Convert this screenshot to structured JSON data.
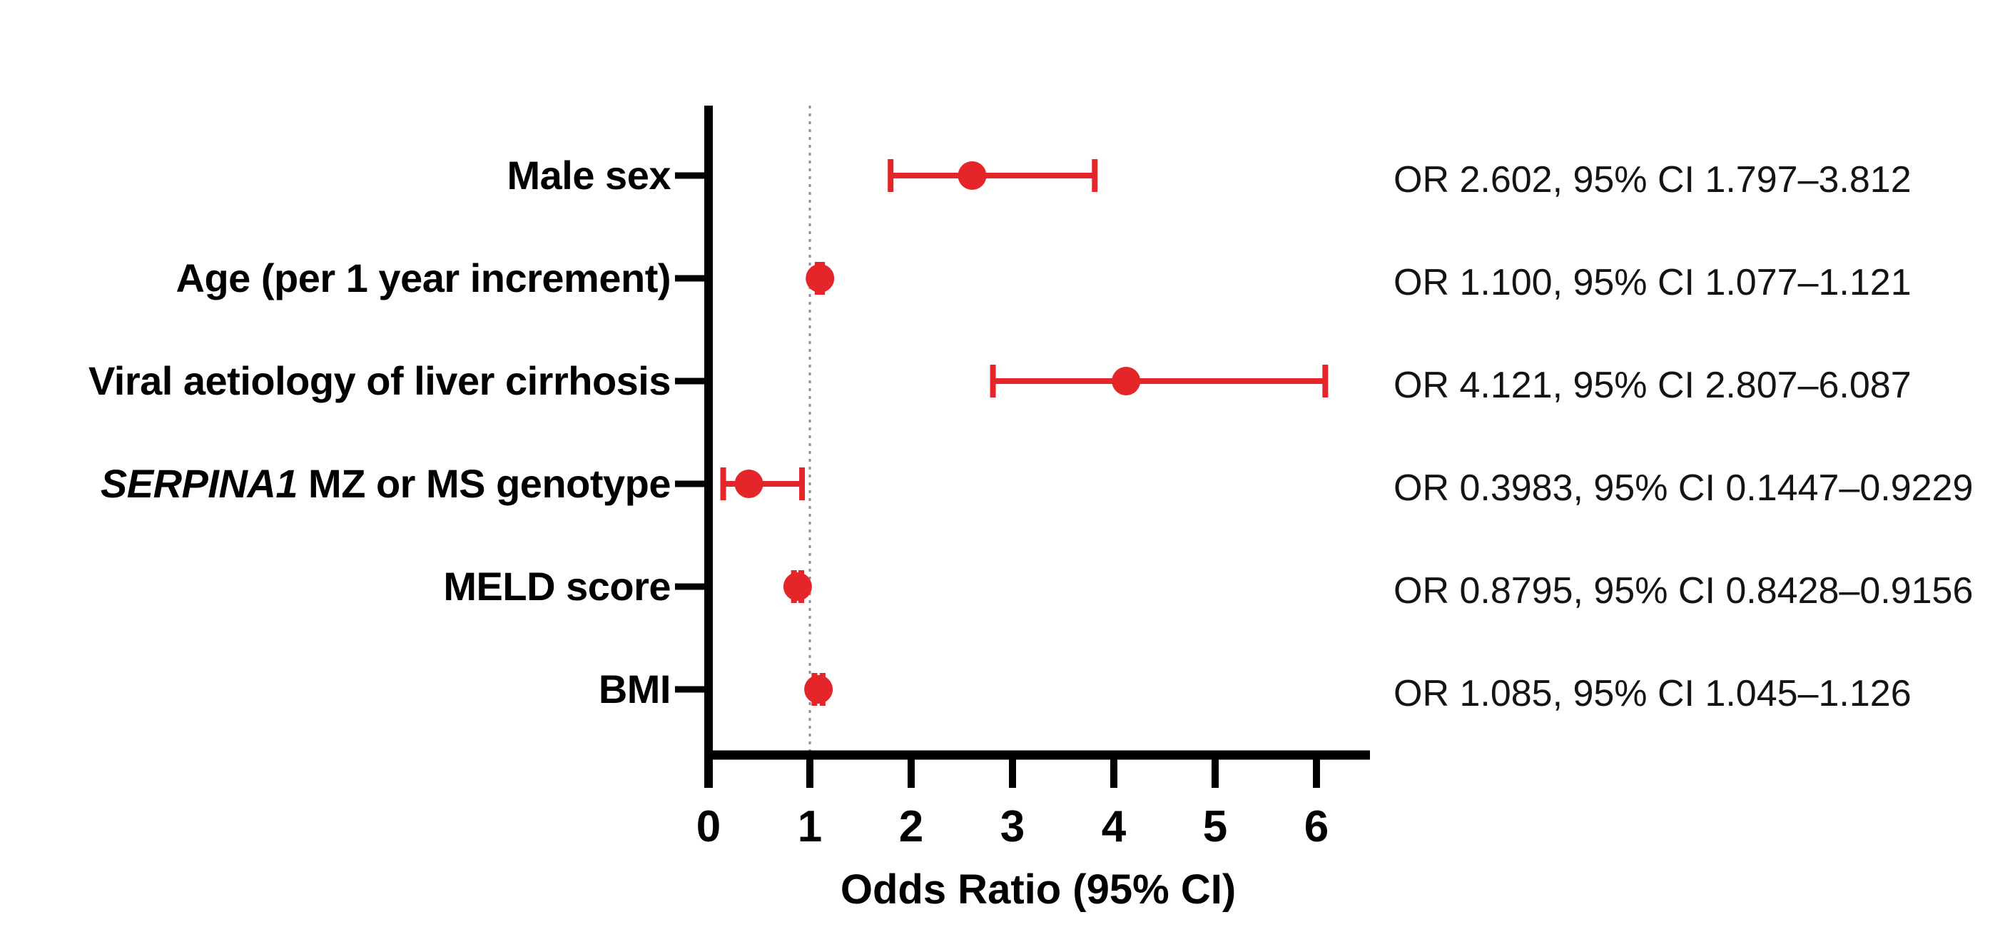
{
  "figure": {
    "background": "#ffffff"
  },
  "chart_data": {
    "type": "scatter",
    "subtype": "forest-plot",
    "title": "",
    "xlabel": "Odds Ratio (95% CI)",
    "ylabel": "",
    "xlim": [
      0,
      6.5
    ],
    "x_ticks": [
      0,
      1,
      2,
      3,
      4,
      5,
      6
    ],
    "grid": false,
    "reference_line_x": 1,
    "marker_color": "#e42529",
    "axis_color": "#000000",
    "reference_line_color": "#8f8f8f",
    "rows": [
      {
        "label_italic": "",
        "label": "Male sex",
        "or": 2.602,
        "ci_low": 1.797,
        "ci_high": 3.812,
        "annotation": "OR 2.602, 95% CI 1.797–3.812"
      },
      {
        "label_italic": "",
        "label": "Age (per 1 year increment)",
        "or": 1.1,
        "ci_low": 1.077,
        "ci_high": 1.121,
        "annotation": "OR 1.100, 95% CI 1.077–1.121"
      },
      {
        "label_italic": "",
        "label": "Viral aetiology of liver cirrhosis",
        "or": 4.121,
        "ci_low": 2.807,
        "ci_high": 6.087,
        "annotation": "OR 4.121, 95% CI 2.807–6.087"
      },
      {
        "label_italic": "SERPINA1",
        "label": " MZ or MS genotype",
        "or": 0.3983,
        "ci_low": 0.1447,
        "ci_high": 0.9229,
        "annotation": "OR 0.3983, 95% CI 0.1447–0.9229"
      },
      {
        "label_italic": "",
        "label": "MELD score",
        "or": 0.8795,
        "ci_low": 0.8428,
        "ci_high": 0.9156,
        "annotation": "OR 0.8795, 95% CI 0.8428–0.9156"
      },
      {
        "label_italic": "",
        "label": "BMI",
        "or": 1.085,
        "ci_low": 1.045,
        "ci_high": 1.126,
        "annotation": "OR 1.085, 95% CI 1.045–1.126"
      }
    ]
  }
}
